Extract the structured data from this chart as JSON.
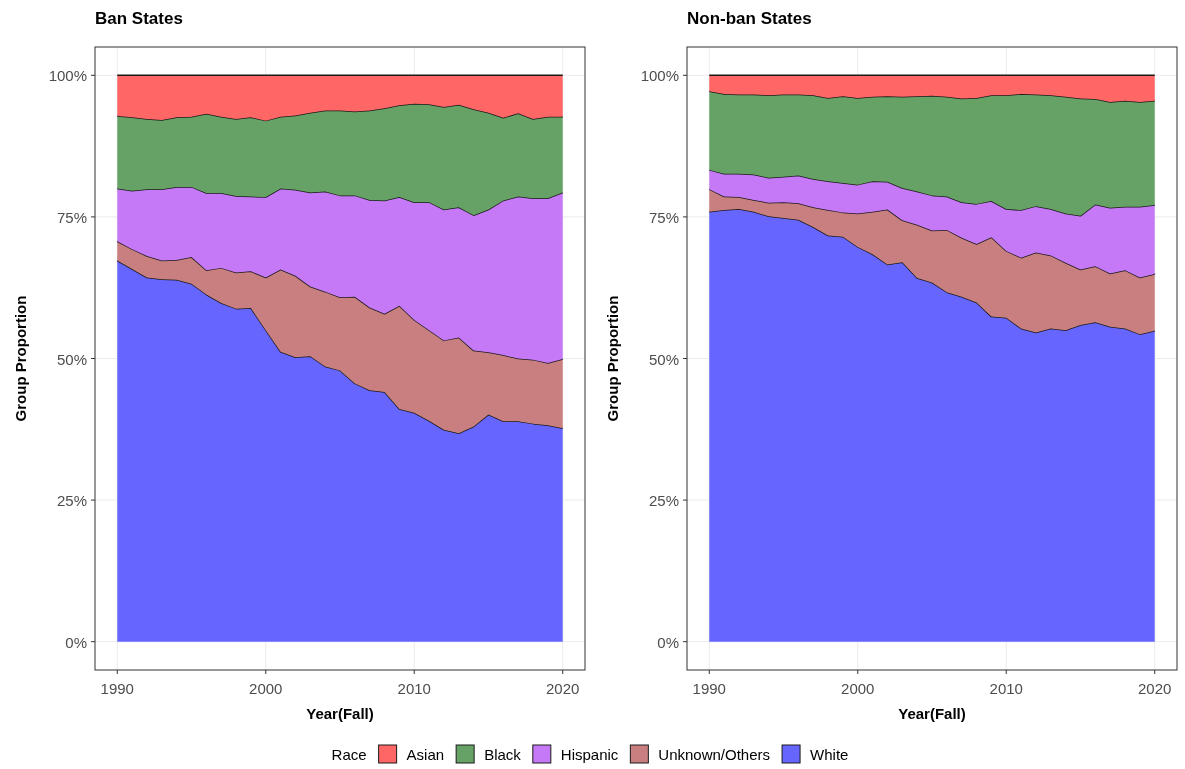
{
  "chart_data": [
    {
      "type": "area",
      "stacked": true,
      "title": "Ban States",
      "xlabel": "Year(Fall)",
      "ylabel": "Group Proportion",
      "x": [
        1990,
        1991,
        1992,
        1993,
        1994,
        1995,
        1996,
        1997,
        1998,
        1999,
        2000,
        2001,
        2002,
        2003,
        2004,
        2005,
        2006,
        2007,
        2008,
        2009,
        2010,
        2011,
        2012,
        2013,
        2014,
        2015,
        2016,
        2017,
        2018,
        2019,
        2020
      ],
      "xlim": [
        1988.5,
        2021.5
      ],
      "xticks": [
        1990,
        2000,
        2010,
        2020
      ],
      "ylim": [
        -5,
        105
      ],
      "yticks": [
        {
          "value": 0,
          "label": "0%"
        },
        {
          "value": 25,
          "label": "25%"
        },
        {
          "value": 50,
          "label": "50%"
        },
        {
          "value": 75,
          "label": "75%"
        },
        {
          "value": 100,
          "label": "100%"
        }
      ],
      "grid": true,
      "series": [
        {
          "color": "#6666ff",
          "values": [
            67.3,
            65.8,
            64.3,
            64.0,
            63.9,
            63.2,
            61.3,
            59.8,
            58.8,
            58.9,
            55.0,
            51.2,
            50.2,
            50.4,
            48.6,
            47.9,
            45.6,
            44.4,
            44.1,
            41.1,
            40.4,
            39.0,
            37.4,
            36.8,
            38.0,
            40.1,
            38.9,
            38.9,
            38.5,
            38.2,
            37.7
          ]
        },
        {
          "color": "#c97f7f",
          "values": [
            3.4,
            3.5,
            3.8,
            3.3,
            3.5,
            4.7,
            4.3,
            6.2,
            6.4,
            6.5,
            9.3,
            14.5,
            14.4,
            12.3,
            13.2,
            12.9,
            15.3,
            14.6,
            13.8,
            18.2,
            16.4,
            16.0,
            15.8,
            16.9,
            13.4,
            11.0,
            11.7,
            11.1,
            11.3,
            11.0,
            12.2
          ]
        },
        {
          "color": "#c679f6",
          "values": [
            9.3,
            10.3,
            11.8,
            12.6,
            12.9,
            12.4,
            13.6,
            13.2,
            13.5,
            13.2,
            14.2,
            14.3,
            15.2,
            16.6,
            17.7,
            18.0,
            17.9,
            19.0,
            20.0,
            19.2,
            20.8,
            22.6,
            23.1,
            23.0,
            23.9,
            25.2,
            27.3,
            28.6,
            28.5,
            29.1,
            29.4
          ]
        },
        {
          "color": "#66a266",
          "values": [
            12.8,
            13.0,
            12.4,
            12.2,
            12.3,
            12.4,
            14.0,
            13.5,
            13.6,
            14.0,
            13.5,
            12.7,
            13.1,
            14.1,
            14.3,
            15.0,
            14.8,
            15.8,
            16.3,
            16.2,
            17.4,
            17.3,
            18.1,
            18.1,
            18.7,
            17.1,
            14.6,
            14.7,
            14.0,
            14.4,
            13.4
          ]
        },
        {
          "color": "#ff6666",
          "values": [
            7.2,
            7.4,
            7.7,
            7.9,
            7.4,
            7.3,
            6.8,
            7.3,
            7.7,
            7.4,
            8.0,
            7.3,
            7.1,
            6.6,
            6.2,
            6.2,
            6.4,
            6.2,
            5.8,
            5.3,
            5.0,
            5.1,
            5.6,
            5.2,
            6.0,
            6.6,
            7.5,
            6.7,
            7.7,
            7.3,
            7.3
          ]
        }
      ]
    },
    {
      "type": "area",
      "stacked": true,
      "title": "Non-ban States",
      "xlabel": "Year(Fall)",
      "ylabel": "Group Proportion",
      "x": [
        1990,
        1991,
        1992,
        1993,
        1994,
        1995,
        1996,
        1997,
        1998,
        1999,
        2000,
        2001,
        2002,
        2003,
        2004,
        2005,
        2006,
        2007,
        2008,
        2009,
        2010,
        2011,
        2012,
        2013,
        2014,
        2015,
        2016,
        2017,
        2018,
        2019,
        2020
      ],
      "xlim": [
        1988.5,
        2021.5
      ],
      "xticks": [
        1990,
        2000,
        2010,
        2020
      ],
      "ylim": [
        -5,
        105
      ],
      "yticks": [
        {
          "value": 0,
          "label": "0%"
        },
        {
          "value": 25,
          "label": "25%"
        },
        {
          "value": 50,
          "label": "50%"
        },
        {
          "value": 75,
          "label": "75%"
        },
        {
          "value": 100,
          "label": "100%"
        }
      ],
      "grid": true,
      "legend": "bottom",
      "legend_title": "Race",
      "series": [
        {
          "name": "White",
          "color": "#6666ff",
          "values": [
            75.9,
            76.2,
            76.4,
            75.9,
            75.1,
            74.8,
            74.5,
            73.2,
            71.7,
            71.5,
            69.7,
            68.4,
            66.6,
            67.0,
            64.2,
            63.4,
            61.7,
            60.9,
            59.9,
            57.4,
            57.2,
            55.3,
            54.6,
            55.3,
            55.0,
            55.9,
            56.4,
            55.6,
            55.3,
            54.3,
            54.9
          ]
        },
        {
          "name": "Unknown/Others",
          "color": "#c97f7f",
          "values": [
            4.0,
            2.4,
            2.1,
            2.1,
            2.4,
            2.8,
            2.9,
            3.5,
            4.5,
            4.3,
            5.9,
            7.5,
            9.7,
            7.4,
            9.4,
            9.2,
            11.0,
            10.4,
            10.3,
            14.0,
            11.8,
            12.5,
            14.1,
            12.9,
            11.9,
            9.8,
            9.9,
            9.4,
            10.3,
            10.0,
            10.0
          ]
        },
        {
          "name": "Hispanic",
          "color": "#c679f6",
          "values": [
            3.4,
            4.0,
            4.1,
            4.5,
            4.4,
            4.5,
            4.9,
            5.0,
            5.1,
            5.2,
            5.1,
            5.4,
            4.9,
            5.7,
            5.9,
            6.2,
            5.9,
            6.3,
            7.1,
            6.4,
            7.4,
            8.4,
            8.2,
            8.2,
            8.7,
            9.5,
            10.9,
            11.6,
            11.2,
            12.5,
            12.2
          ]
        },
        {
          "name": "Black",
          "color": "#66a266",
          "values": [
            13.9,
            14.1,
            14.0,
            14.1,
            14.6,
            14.5,
            14.3,
            14.8,
            14.7,
            15.3,
            15.3,
            14.9,
            15.1,
            16.1,
            16.8,
            17.6,
            17.6,
            18.3,
            18.7,
            18.7,
            20.1,
            20.5,
            19.7,
            20.1,
            20.6,
            20.7,
            18.6,
            18.7,
            18.7,
            18.5,
            18.4
          ]
        },
        {
          "name": "Asian",
          "color": "#ff6666",
          "values": [
            2.8,
            3.3,
            3.4,
            3.4,
            3.5,
            3.4,
            3.4,
            3.5,
            4.0,
            3.7,
            4.0,
            3.8,
            3.7,
            3.8,
            3.7,
            3.6,
            3.8,
            4.1,
            4.0,
            3.5,
            3.5,
            3.3,
            3.4,
            3.5,
            3.8,
            4.1,
            4.2,
            4.7,
            4.5,
            4.7,
            4.5
          ]
        }
      ]
    }
  ]
}
